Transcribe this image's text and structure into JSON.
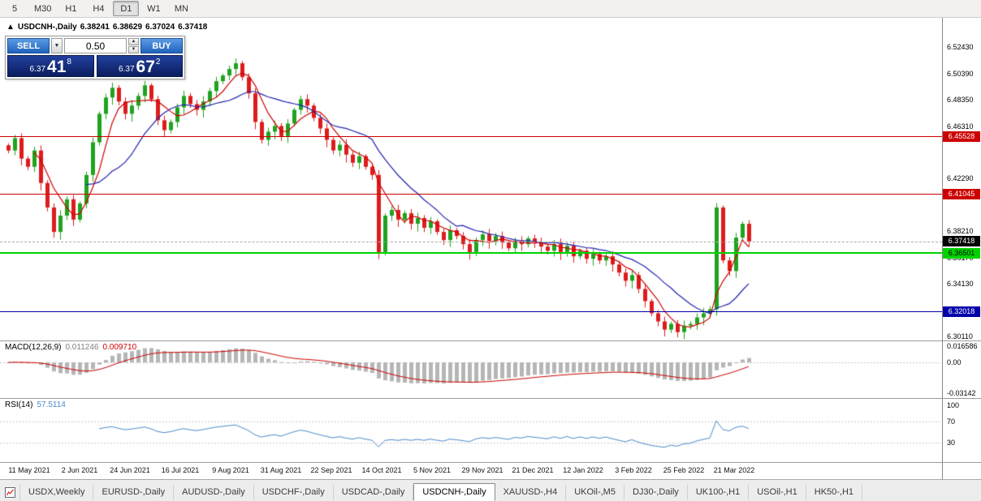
{
  "icons": {
    "collapse": "▲",
    "dropdown": "▼",
    "step_up": "▲",
    "step_down": "▼"
  },
  "toolbar": {
    "timeframes": [
      {
        "label": "5",
        "active": false
      },
      {
        "label": "M30",
        "active": false
      },
      {
        "label": "H1",
        "active": false
      },
      {
        "label": "H4",
        "active": false
      },
      {
        "label": "D1",
        "active": true
      },
      {
        "label": "W1",
        "active": false
      },
      {
        "label": "MN",
        "active": false
      }
    ]
  },
  "chart": {
    "symbol_title": "USDCNH-,Daily",
    "ohlc": {
      "open": "6.38241",
      "high": "6.38629",
      "low": "6.37024",
      "close": "6.37418"
    },
    "trade_panel": {
      "sell_label": "SELL",
      "buy_label": "BUY",
      "lot": "0.50",
      "sell_price": {
        "small": "6.37",
        "big": "41",
        "sup": "8"
      },
      "buy_price": {
        "small": "6.37",
        "big": "67",
        "sup": "2"
      }
    },
    "levels": [
      {
        "label": "6.45528",
        "value": 6.45528,
        "color": "#cc0000",
        "text_color": "#ffffff",
        "thick": 1
      },
      {
        "label": "6.41045",
        "value": 6.41045,
        "color": "#cc0000",
        "text_color": "#ffffff",
        "thick": 1
      },
      {
        "label": "6.36501",
        "value": 6.36501,
        "color": "#00d200",
        "text_color": "#000000",
        "thick": 2
      },
      {
        "label": "6.32018",
        "value": 6.32018,
        "color": "#0000a8",
        "text_color": "#ffffff",
        "thick": 1
      }
    ],
    "current_price": {
      "label": "6.37418",
      "value": 6.37418
    },
    "y_axis": {
      "ticks": [
        {
          "label": "6.52430",
          "value": 6.5243
        },
        {
          "label": "6.50390",
          "value": 6.5039
        },
        {
          "label": "6.48350",
          "value": 6.4835
        },
        {
          "label": "6.46310",
          "value": 6.4631
        },
        {
          "label": "6.42290",
          "value": 6.4229
        },
        {
          "label": "6.38210",
          "value": 6.3821
        },
        {
          "label": "6.36170",
          "value": 6.3617
        },
        {
          "label": "6.34130",
          "value": 6.3413
        },
        {
          "label": "6.30110",
          "value": 6.3011
        }
      ]
    },
    "x_axis": {
      "dates": [
        "11 May 2021",
        "2 Jun 2021",
        "24 Jun 2021",
        "16 Jul 2021",
        "9 Aug 2021",
        "31 Aug 2021",
        "22 Sep 2021",
        "14 Oct 2021",
        "5 Nov 2021",
        "29 Nov 2021",
        "21 Dec 2021",
        "12 Jan 2022",
        "3 Feb 2022",
        "25 Feb 2022",
        "21 Mar 2022"
      ]
    },
    "colors": {
      "up": "#1fa31f",
      "down": "#dd1c1c",
      "ma_fast": "#d00000",
      "ma_slow": "#2121b0",
      "macd_hist": "#b6b6b6",
      "macd_signal": "#cc0000",
      "rsi_line": "#4a88c8",
      "guide": "#c8c8c8"
    }
  },
  "macd": {
    "name": "MACD(12,26,9)",
    "main_value": "0.011246",
    "signal_value": "0.009710",
    "axis": [
      {
        "label": "0.016586",
        "value": 0.016586
      },
      {
        "label": "0.00",
        "value": 0
      },
      {
        "label": "-0.03142",
        "value": -0.03142
      }
    ]
  },
  "rsi": {
    "name": "RSI(14)",
    "value": "57.5114",
    "axis": [
      {
        "label": "100",
        "value": 100
      },
      {
        "label": "70",
        "value": 70
      },
      {
        "label": "30",
        "value": 30
      }
    ],
    "guides": [
      70,
      30
    ]
  },
  "tabs": [
    {
      "label": "USDX,Weekly",
      "active": false
    },
    {
      "label": "EURUSD-,Daily",
      "active": false
    },
    {
      "label": "AUDUSD-,Daily",
      "active": false
    },
    {
      "label": "USDCHF-,Daily",
      "active": false
    },
    {
      "label": "USDCAD-,Daily",
      "active": false
    },
    {
      "label": "USDCNH-,Daily",
      "active": true
    },
    {
      "label": "XAUUSD-,H4",
      "active": false
    },
    {
      "label": "UKOil-,M5",
      "active": false
    },
    {
      "label": "DJ30-,Daily",
      "active": false
    },
    {
      "label": "UK100-,H1",
      "active": false
    },
    {
      "label": "USOil-,H1",
      "active": false
    },
    {
      "label": "HK50-,H1",
      "active": false
    }
  ],
  "chart_data": {
    "type": "candlestick",
    "symbol": "USDCNH-",
    "timeframe": "Daily",
    "ylim": [
      6.2977,
      6.5468
    ],
    "indicators": [
      "MACD(12,26,9)",
      "RSI(14)"
    ],
    "closes": [
      6.4444,
      6.4539,
      6.4381,
      6.4318,
      6.4444,
      6.4193,
      6.4004,
      6.3815,
      6.3941,
      6.4067,
      6.391,
      6.4035,
      6.4255,
      6.4507,
      6.4727,
      6.4853,
      6.4928,
      6.4822,
      6.4727,
      6.479,
      6.4865,
      6.4947,
      6.484,
      6.4677,
      6.4601,
      6.4664,
      6.4777,
      6.4865,
      6.4802,
      6.4758,
      6.4822,
      6.4903,
      6.4979,
      6.5023,
      6.5073,
      6.5117,
      6.501,
      6.4885,
      6.4664,
      6.4526,
      6.4589,
      6.4633,
      6.4551,
      6.4652,
      6.4758,
      6.484,
      6.479,
      6.4696,
      6.4614,
      6.4526,
      6.4444,
      6.4488,
      6.4412,
      6.4349,
      6.44,
      6.4318,
      6.4255,
      6.3658,
      6.3941,
      6.3985,
      6.391,
      6.396,
      6.3878,
      6.3922,
      6.3847,
      6.3897,
      6.3815,
      6.3752,
      6.3828,
      6.3784,
      6.3721,
      6.3658,
      6.3752,
      6.3796,
      6.3745,
      6.3784,
      6.3733,
      6.3689,
      6.3745,
      6.3721,
      6.3765,
      6.3733,
      6.3702,
      6.367,
      6.3721,
      6.3658,
      6.3708,
      6.3627,
      6.367,
      6.3608,
      6.3645,
      6.3595,
      6.3627,
      6.3564,
      6.3501,
      6.3438,
      6.3482,
      6.3375,
      6.3281,
      6.3187,
      6.3124,
      6.3061,
      6.3105,
      6.3042,
      6.3092,
      6.3105,
      6.3155,
      6.3187,
      6.3218,
      6.4004,
      6.3595,
      6.3513,
      6.3771,
      6.3878,
      6.37418
    ]
  }
}
